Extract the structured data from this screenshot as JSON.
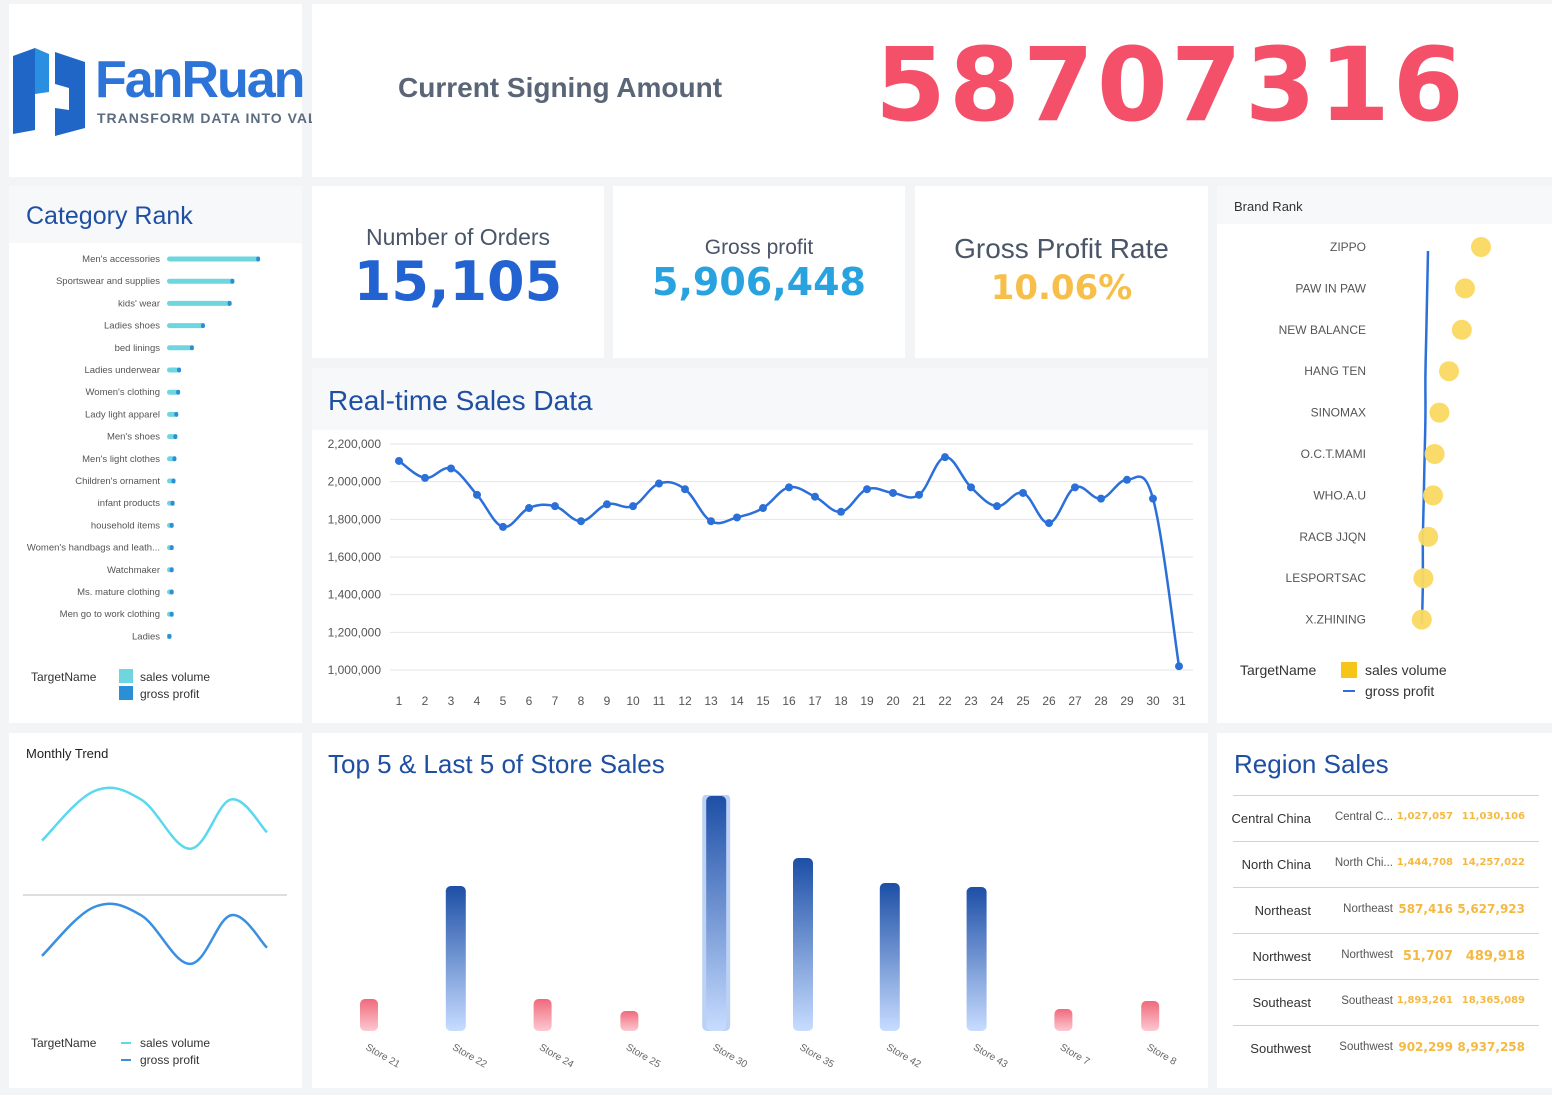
{
  "logo": {
    "brand": "FanRuan",
    "tagline": "TRANSFORM DATA INTO VALUE"
  },
  "signing": {
    "label": "Current Signing Amount",
    "value": "58707316"
  },
  "kpis": {
    "orders": {
      "label": "Number of Orders",
      "value": "15,105"
    },
    "profit": {
      "label": "Gross profit",
      "value": "5,906,448"
    },
    "rate": {
      "label": "Gross Profit Rate",
      "value": "10.06%"
    }
  },
  "category_rank": {
    "title": "Category Rank",
    "legend": {
      "title": "TargetName",
      "series1": "sales volume",
      "series2": "gross profit"
    }
  },
  "realtime": {
    "title": "Real-time Sales Data"
  },
  "brand_rank": {
    "title": "Brand Rank",
    "legend": {
      "title": "TargetName",
      "series1": "sales volume",
      "series2": "gross profit"
    }
  },
  "monthly_trend": {
    "title": "Monthly Trend",
    "legend": {
      "title": "TargetName",
      "series1": "sales volume",
      "series2": "gross profit"
    }
  },
  "store_sales": {
    "title": "Top 5 & Last 5 of Store Sales"
  },
  "region_sales": {
    "title": "Region Sales",
    "rows": [
      {
        "name": "Central China",
        "sub": "Central C...",
        "v1": "1,027,057",
        "v2": "11,030,106"
      },
      {
        "name": "North China",
        "sub": "North Chi...",
        "v1": "1,444,708",
        "v2": "14,257,022"
      },
      {
        "name": "Northeast",
        "sub": "Northeast",
        "v1": "587,416",
        "v2": "5,627,923"
      },
      {
        "name": "Northwest",
        "sub": "Northwest",
        "v1": "51,707",
        "v2": "489,918"
      },
      {
        "name": "Southeast",
        "sub": "Southeast",
        "v1": "1,893,261",
        "v2": "18,365,089"
      },
      {
        "name": "Southwest",
        "sub": "Southwest",
        "v1": "902,299",
        "v2": "8,937,258"
      }
    ]
  },
  "colors": {
    "accent_red": "#f5506a",
    "dark_blue": "#2363d1",
    "light_blue": "#29a3e0",
    "gold": "#f7bf4a",
    "cyan": "#6fd6df",
    "title_blue": "#1f4fa3"
  },
  "chart_data": [
    {
      "type": "bar",
      "orientation": "horizontal",
      "categories": [
        "Men's accessories",
        "Sportswear and supplies",
        "kids' wear",
        "Ladies shoes",
        "bed linings",
        "Ladies underwear",
        "Women's clothing",
        "Lady light apparel",
        "Men's shoes",
        "Men's light clothes",
        "Children's ornament",
        "infant products",
        "household items",
        "Women's handbags and leath...",
        "Watchmaker",
        "Ms. mature clothing",
        "Men go to work clothing",
        "Ladies"
      ],
      "series": [
        {
          "name": "sales volume",
          "values": [
            100,
            73,
            70,
            40,
            27,
            13,
            12,
            10,
            9,
            8,
            7,
            6,
            5,
            5,
            5,
            5,
            5,
            1
          ]
        },
        {
          "name": "gross profit",
          "values": [
            98,
            70,
            67,
            38,
            26,
            12,
            11,
            9,
            8,
            7,
            6,
            5,
            4,
            4,
            4,
            4,
            4,
            1
          ]
        }
      ]
    },
    {
      "type": "line",
      "x": [
        1,
        2,
        3,
        4,
        5,
        6,
        7,
        8,
        9,
        10,
        11,
        12,
        13,
        14,
        15,
        16,
        17,
        18,
        19,
        20,
        21,
        22,
        23,
        24,
        25,
        26,
        27,
        28,
        29,
        30,
        31
      ],
      "values": [
        2110000,
        2020000,
        2070000,
        1930000,
        1760000,
        1860000,
        1870000,
        1790000,
        1880000,
        1870000,
        1990000,
        1960000,
        1790000,
        1810000,
        1860000,
        1970000,
        1920000,
        1840000,
        1960000,
        1940000,
        1930000,
        2130000,
        1970000,
        1870000,
        1940000,
        1780000,
        1970000,
        1910000,
        2010000,
        1910000,
        1020000
      ],
      "yticks": [
        "1,000,000",
        "1,200,000",
        "1,400,000",
        "1,600,000",
        "1,800,000",
        "2,000,000",
        "2,200,000"
      ],
      "ylim": [
        1000000,
        2200000
      ]
    },
    {
      "type": "scatter",
      "categories": [
        "ZIPPO",
        "PAW IN PAW",
        "NEW BALANCE",
        "HANG TEN",
        "SINOMAX",
        "O.C.T.MAMI",
        "WHO.A.U",
        "RACB JJQN",
        "LESPORTSAC",
        "X.ZHINING"
      ],
      "series": [
        {
          "name": "sales volume",
          "values": [
            100,
            90,
            88,
            80,
            74,
            71,
            70,
            67,
            64,
            63
          ]
        },
        {
          "name": "gross profit",
          "values": [
            42,
            41,
            40,
            39,
            39,
            38,
            37,
            36,
            36,
            35
          ]
        }
      ]
    },
    {
      "type": "line",
      "series": [
        {
          "name": "sales volume",
          "values": [
            3,
            9,
            8,
            2,
            8,
            4
          ]
        },
        {
          "name": "gross profit",
          "values": [
            3,
            9,
            8,
            2,
            8,
            4
          ]
        }
      ]
    },
    {
      "type": "bar",
      "categories": [
        "Store 21",
        "Store 22",
        "Store 24",
        "Store 25",
        "Store 30",
        "Store 35",
        "Store 42",
        "Store 43",
        "Store 7",
        "Store 8"
      ],
      "values": [
        32,
        145,
        32,
        20,
        235,
        173,
        148,
        144,
        22,
        30
      ]
    }
  ]
}
